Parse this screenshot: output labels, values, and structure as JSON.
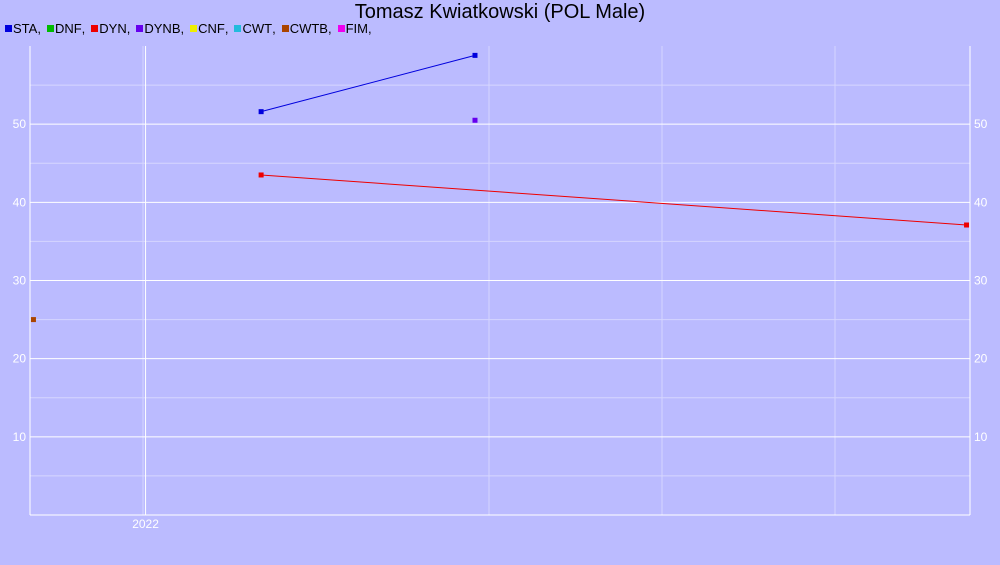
{
  "chart_data": {
    "type": "line",
    "title": "Tomasz Kwiatkowski (POL Male)",
    "xlabel": "",
    "ylabel": "",
    "x_ticks": [
      {
        "value": 2022,
        "label": "2022"
      }
    ],
    "y_ticks": [
      10,
      20,
      30,
      40,
      50
    ],
    "xlim": [
      2021.33,
      2026.78
    ],
    "ylim": [
      0,
      60
    ],
    "grid": true,
    "legend_position": "top-left",
    "series": [
      {
        "name": "STA",
        "color": "#0000dd",
        "points": [
          [
            2022.67,
            51.6
          ],
          [
            2023.91,
            58.8
          ]
        ]
      },
      {
        "name": "DNF",
        "color": "#00bb00",
        "points": []
      },
      {
        "name": "DYN",
        "color": "#ee0000",
        "points": [
          [
            2022.67,
            43.5
          ],
          [
            2026.76,
            37.1
          ]
        ]
      },
      {
        "name": "DYNB",
        "color": "#6600ee",
        "points": [
          [
            2023.91,
            50.5
          ]
        ]
      },
      {
        "name": "CNF",
        "color": "#eeee00",
        "points": []
      },
      {
        "name": "CWT",
        "color": "#22bbdd",
        "points": []
      },
      {
        "name": "CWTB",
        "color": "#aa4400",
        "points": [
          [
            2021.35,
            25
          ]
        ]
      },
      {
        "name": "FIM",
        "color": "#ee00ee",
        "points": []
      }
    ]
  }
}
